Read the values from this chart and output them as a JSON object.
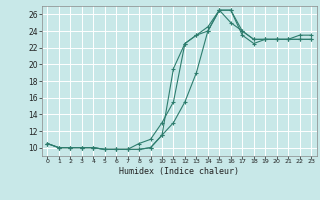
{
  "xlabel": "Humidex (Indice chaleur)",
  "xlim": [
    -0.5,
    23.5
  ],
  "ylim": [
    9.0,
    27.0
  ],
  "yticks": [
    10,
    12,
    14,
    16,
    18,
    20,
    22,
    24,
    26
  ],
  "xticks": [
    0,
    1,
    2,
    3,
    4,
    5,
    6,
    7,
    8,
    9,
    10,
    11,
    12,
    13,
    14,
    15,
    16,
    17,
    18,
    19,
    20,
    21,
    22,
    23
  ],
  "bg_color": "#c8e8e8",
  "line_color": "#2e7d6e",
  "grid_color": "#ffffff",
  "curve1_x": [
    0,
    1,
    2,
    3,
    4,
    5,
    6,
    7,
    8,
    9,
    10,
    11,
    12,
    13,
    14,
    15,
    16,
    17,
    18,
    19,
    20,
    21,
    22,
    23
  ],
  "curve1_y": [
    10.5,
    10.0,
    10.0,
    10.0,
    10.0,
    9.8,
    9.8,
    9.8,
    9.8,
    10.0,
    11.5,
    13.0,
    15.5,
    19.0,
    24.0,
    26.5,
    26.5,
    24.0,
    23.0,
    23.0,
    23.0,
    23.0,
    23.0,
    23.0
  ],
  "curve2_x": [
    0,
    1,
    2,
    3,
    4,
    5,
    6,
    7,
    8,
    9,
    10,
    11,
    12,
    13,
    14,
    15,
    16,
    17,
    18,
    19,
    20,
    21,
    22,
    23
  ],
  "curve2_y": [
    10.5,
    10.0,
    10.0,
    10.0,
    10.0,
    9.8,
    9.8,
    9.8,
    10.5,
    11.0,
    13.0,
    15.5,
    22.5,
    23.5,
    24.5,
    26.5,
    25.0,
    24.0,
    23.0,
    23.0,
    23.0,
    23.0,
    23.0,
    23.0
  ],
  "curve3_x": [
    0,
    1,
    2,
    3,
    4,
    5,
    6,
    7,
    8,
    9,
    10,
    11,
    12,
    13,
    14,
    15,
    16,
    17,
    18,
    19,
    20,
    21,
    22,
    23
  ],
  "curve3_y": [
    10.5,
    10.0,
    10.0,
    10.0,
    10.0,
    9.8,
    9.8,
    9.8,
    9.8,
    10.0,
    11.5,
    19.5,
    22.5,
    23.5,
    24.0,
    26.5,
    26.5,
    23.5,
    22.5,
    23.0,
    23.0,
    23.0,
    23.5,
    23.5
  ]
}
